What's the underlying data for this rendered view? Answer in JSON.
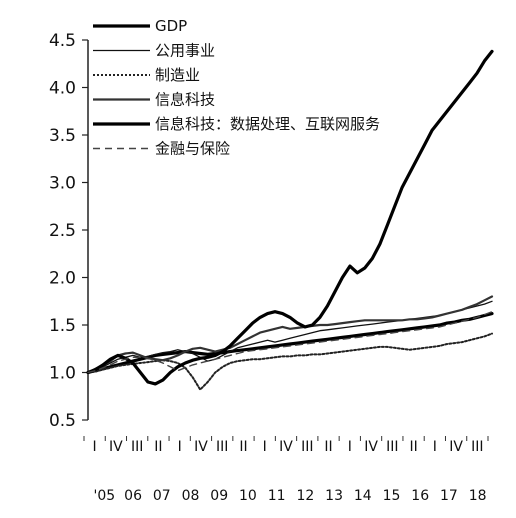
{
  "chart_data": {
    "type": "line",
    "title": "",
    "xlabel": "",
    "ylabel": "",
    "ylim": [
      0.5,
      4.5
    ],
    "yticks": [
      "4.5",
      "4.0",
      "3.5",
      "3.0",
      "2.5",
      "2.0",
      "1.5",
      "1.0",
      "0.5"
    ],
    "quarter_labels": [
      "I",
      "IV",
      "III",
      "II",
      "I",
      "IV",
      "III",
      "II",
      "I",
      "IV",
      "III",
      "II",
      "I",
      "IV",
      "III",
      "II",
      "I",
      "IV",
      "III"
    ],
    "year_labels": [
      "'05",
      "06",
      "07",
      "08",
      "09",
      "10",
      "11",
      "12",
      "13",
      "14",
      "15",
      "16",
      "17",
      "18"
    ],
    "x": [
      "2005Q1",
      "2005Q2",
      "2005Q3",
      "2005Q4",
      "2006Q1",
      "2006Q2",
      "2006Q3",
      "2006Q4",
      "2007Q1",
      "2007Q2",
      "2007Q3",
      "2007Q4",
      "2008Q1",
      "2008Q2",
      "2008Q3",
      "2008Q4",
      "2009Q1",
      "2009Q2",
      "2009Q3",
      "2009Q4",
      "2010Q1",
      "2010Q2",
      "2010Q3",
      "2010Q4",
      "2011Q1",
      "2011Q2",
      "2011Q3",
      "2011Q4",
      "2012Q1",
      "2012Q2",
      "2012Q3",
      "2012Q4",
      "2013Q1",
      "2013Q2",
      "2013Q3",
      "2013Q4",
      "2014Q1",
      "2014Q2",
      "2014Q3",
      "2014Q4",
      "2015Q1",
      "2015Q2",
      "2015Q3",
      "2015Q4",
      "2016Q1",
      "2016Q2",
      "2016Q3",
      "2016Q4",
      "2017Q1",
      "2017Q2",
      "2017Q3",
      "2017Q4",
      "2018Q1",
      "2018Q2",
      "2018Q3"
    ],
    "legend_position": "top-left",
    "series": [
      {
        "name": "GDP",
        "color": "#000000",
        "style": "thick",
        "values": [
          1.0,
          1.02,
          1.04,
          1.06,
          1.08,
          1.1,
          1.12,
          1.14,
          1.16,
          1.18,
          1.19,
          1.2,
          1.21,
          1.22,
          1.21,
          1.2,
          1.19,
          1.2,
          1.21,
          1.22,
          1.23,
          1.24,
          1.25,
          1.26,
          1.27,
          1.28,
          1.29,
          1.3,
          1.31,
          1.32,
          1.33,
          1.34,
          1.35,
          1.36,
          1.37,
          1.38,
          1.39,
          1.4,
          1.41,
          1.42,
          1.43,
          1.44,
          1.45,
          1.46,
          1.47,
          1.48,
          1.49,
          1.5,
          1.52,
          1.53,
          1.55,
          1.56,
          1.58,
          1.6,
          1.62
        ]
      },
      {
        "name": "公用事业",
        "color": "#111111",
        "style": "thin",
        "values": [
          1.0,
          1.03,
          1.06,
          1.1,
          1.14,
          1.16,
          1.18,
          1.16,
          1.17,
          1.19,
          1.21,
          1.22,
          1.24,
          1.22,
          1.2,
          1.16,
          1.12,
          1.14,
          1.18,
          1.22,
          1.26,
          1.28,
          1.3,
          1.32,
          1.34,
          1.32,
          1.34,
          1.36,
          1.38,
          1.4,
          1.42,
          1.44,
          1.45,
          1.46,
          1.47,
          1.48,
          1.49,
          1.5,
          1.51,
          1.52,
          1.53,
          1.54,
          1.55,
          1.56,
          1.57,
          1.58,
          1.59,
          1.6,
          1.62,
          1.64,
          1.66,
          1.68,
          1.7,
          1.72,
          1.75
        ]
      },
      {
        "name": "制造业",
        "color": "#222222",
        "style": "dotted",
        "values": [
          1.0,
          1.01,
          1.03,
          1.05,
          1.07,
          1.08,
          1.09,
          1.1,
          1.11,
          1.12,
          1.13,
          1.12,
          1.1,
          1.05,
          0.95,
          0.82,
          0.9,
          1.0,
          1.06,
          1.1,
          1.12,
          1.13,
          1.14,
          1.14,
          1.15,
          1.16,
          1.17,
          1.17,
          1.18,
          1.18,
          1.19,
          1.19,
          1.2,
          1.21,
          1.22,
          1.23,
          1.24,
          1.25,
          1.26,
          1.27,
          1.27,
          1.26,
          1.25,
          1.24,
          1.25,
          1.26,
          1.27,
          1.28,
          1.3,
          1.31,
          1.32,
          1.34,
          1.36,
          1.38,
          1.41
        ]
      },
      {
        "name": "信息科技",
        "color": "#333333",
        "style": "medium",
        "values": [
          1.0,
          1.04,
          1.08,
          1.12,
          1.18,
          1.2,
          1.21,
          1.18,
          1.15,
          1.14,
          1.13,
          1.15,
          1.18,
          1.22,
          1.25,
          1.26,
          1.24,
          1.22,
          1.24,
          1.26,
          1.3,
          1.34,
          1.38,
          1.42,
          1.44,
          1.46,
          1.48,
          1.46,
          1.47,
          1.48,
          1.49,
          1.5,
          1.5,
          1.51,
          1.52,
          1.53,
          1.54,
          1.55,
          1.55,
          1.55,
          1.55,
          1.55,
          1.55,
          1.56,
          1.56,
          1.57,
          1.58,
          1.6,
          1.62,
          1.64,
          1.66,
          1.69,
          1.72,
          1.76,
          1.8
        ]
      },
      {
        "name": "信息科技：数据处理、互联网服务",
        "color": "#000000",
        "style": "thick",
        "values": [
          1.0,
          1.03,
          1.08,
          1.14,
          1.18,
          1.15,
          1.1,
          1.0,
          0.9,
          0.88,
          0.92,
          1.0,
          1.06,
          1.1,
          1.13,
          1.15,
          1.16,
          1.18,
          1.22,
          1.28,
          1.36,
          1.44,
          1.52,
          1.58,
          1.62,
          1.64,
          1.62,
          1.58,
          1.52,
          1.48,
          1.5,
          1.58,
          1.7,
          1.85,
          2.0,
          2.12,
          2.05,
          2.1,
          2.2,
          2.35,
          2.55,
          2.75,
          2.95,
          3.1,
          3.25,
          3.4,
          3.55,
          3.65,
          3.75,
          3.85,
          3.95,
          4.05,
          4.15,
          4.28,
          4.38
        ]
      },
      {
        "name": "金融与保险",
        "color": "#444444",
        "style": "dashed",
        "values": [
          1.0,
          1.02,
          1.05,
          1.08,
          1.12,
          1.14,
          1.16,
          1.16,
          1.15,
          1.13,
          1.1,
          1.06,
          1.02,
          1.05,
          1.08,
          1.1,
          1.12,
          1.14,
          1.16,
          1.18,
          1.2,
          1.22,
          1.23,
          1.24,
          1.25,
          1.26,
          1.27,
          1.28,
          1.29,
          1.3,
          1.31,
          1.32,
          1.33,
          1.34,
          1.35,
          1.36,
          1.37,
          1.38,
          1.39,
          1.4,
          1.41,
          1.42,
          1.43,
          1.44,
          1.45,
          1.46,
          1.47,
          1.48,
          1.5,
          1.52,
          1.54,
          1.56,
          1.58,
          1.61,
          1.64
        ]
      }
    ]
  }
}
